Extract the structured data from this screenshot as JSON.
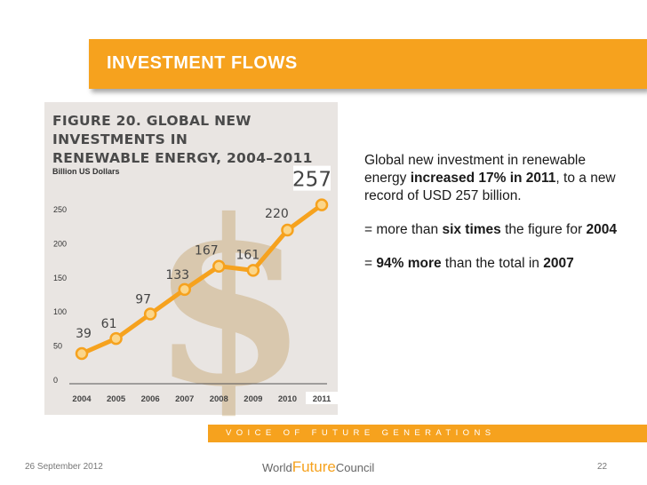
{
  "header": {
    "title": "INVESTMENT FLOWS"
  },
  "figure": {
    "title_line1": "FIGURE 20. GLOBAL NEW INVESTMENTS IN",
    "title_line2": "RENEWABLE ENERGY, 2004–2011",
    "unit": "Billion US Dollars",
    "background_symbol": "$"
  },
  "chart_data": {
    "type": "line",
    "title": "FIGURE 20. GLOBAL NEW INVESTMENTS IN RENEWABLE ENERGY, 2004–2011",
    "ylabel": "Billion US Dollars",
    "xlabel": "",
    "categories": [
      "2004",
      "2005",
      "2006",
      "2007",
      "2008",
      "2009",
      "2010",
      "2011"
    ],
    "values": [
      39,
      61,
      97,
      133,
      167,
      161,
      220,
      257
    ],
    "ylim": [
      0,
      250
    ],
    "yticks": [
      0,
      50,
      100,
      150,
      200,
      250
    ],
    "line_color": "#f6a21e",
    "marker_color": "#fbd68a",
    "highlight_last": true
  },
  "text_block": {
    "p1_a": "Global new investment in renewable energy ",
    "p1_b": "increased 17% in 2011",
    "p1_c": ", to a new record of USD 257 billion.",
    "p2_a": "= more than ",
    "p2_b": "six times",
    "p2_c": " the figure for ",
    "p2_d": "2004",
    "p3_a": "= ",
    "p3_b": "94% more",
    "p3_c": " than the total in ",
    "p3_d": "2007"
  },
  "footer": {
    "band_text": "VOICE OF FUTURE GENERATIONS",
    "date": "26 September 2012",
    "page": "22",
    "logo_word1": "World",
    "logo_word2": "Future",
    "logo_word3": "Council"
  },
  "colors": {
    "accent": "#f6a21e",
    "figure_bg": "#e9e5e2"
  }
}
